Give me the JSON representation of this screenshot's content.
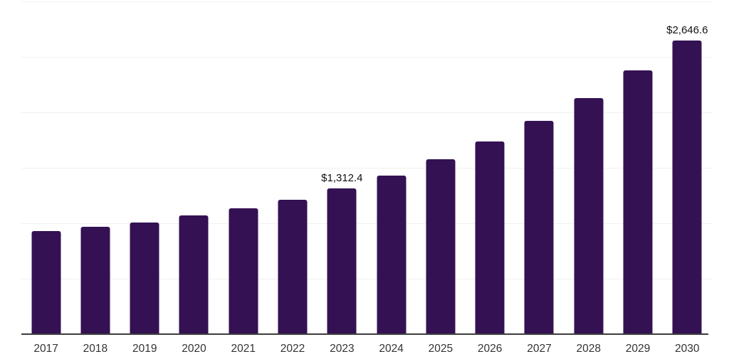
{
  "chart_data": {
    "type": "bar",
    "title": "",
    "xlabel": "",
    "ylabel": "",
    "categories": [
      "2017",
      "2018",
      "2019",
      "2020",
      "2021",
      "2022",
      "2023",
      "2024",
      "2025",
      "2026",
      "2027",
      "2028",
      "2029",
      "2030"
    ],
    "values": [
      930,
      965,
      1005,
      1070,
      1135,
      1210,
      1312.4,
      1428,
      1575,
      1740,
      1925,
      2130,
      2380,
      2646.6
    ],
    "point_labels": [
      "",
      "",
      "",
      "",
      "",
      "",
      "$1,312.4",
      "",
      "",
      "",
      "",
      "",
      "",
      "$2,646.6"
    ],
    "ylim": [
      0,
      3000
    ],
    "gridline_values": [
      500,
      1000,
      1500,
      2000,
      2500,
      3000
    ],
    "grid": "horizontal",
    "legend": "none",
    "colors": {
      "bar": "#341153",
      "axis_line": "#3d3d3d",
      "gridline": "#f0f0f0",
      "tick_label": "#333333",
      "data_label": "#111111"
    }
  }
}
